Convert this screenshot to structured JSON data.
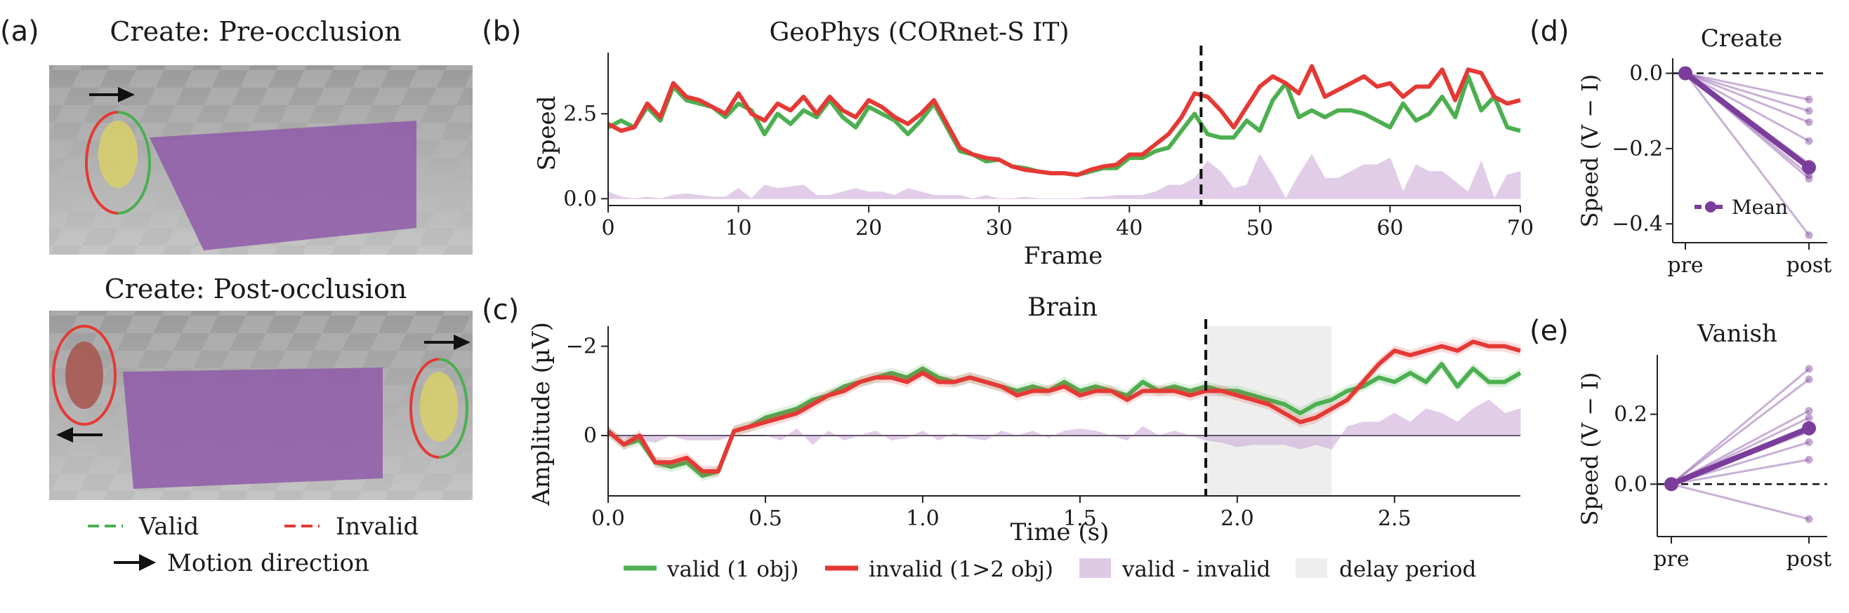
{
  "panel_letters": [
    "(a)",
    "(b)",
    "(c)",
    "(d)",
    "(e)"
  ],
  "panel_a": {
    "top_title": "Create: Pre-occlusion",
    "bottom_title": "Create: Post-occlusion",
    "legend_valid": "Valid",
    "legend_invalid": "Invalid",
    "legend_motion": "Motion direction",
    "colors": {
      "valid": "#4caf50",
      "invalid": "#e53935",
      "wall": "#8e5aa8",
      "bunny": "#d9cf6a",
      "bunny_red": "#a8544c"
    }
  },
  "legend": {
    "valid": "valid (1 obj)",
    "invalid": "invalid (1>2 obj)",
    "diff": "valid - invalid",
    "delay": "delay period"
  },
  "chart_data": [
    {
      "id": "b",
      "type": "line",
      "title": "GeoPhys (CORnet-S IT)",
      "xlabel": "Frame",
      "ylabel": "Speed",
      "xlim": [
        0,
        70
      ],
      "ylim": [
        -0.2,
        4.3
      ],
      "xticks": [
        0,
        10,
        20,
        30,
        40,
        50,
        60,
        70
      ],
      "yticks": [
        "0.0",
        "2.5"
      ],
      "ytick_values": [
        0,
        2.5
      ],
      "vline": 45.5,
      "x": [
        0,
        1,
        2,
        3,
        4,
        5,
        6,
        7,
        8,
        9,
        10,
        11,
        12,
        13,
        14,
        15,
        16,
        17,
        18,
        19,
        20,
        21,
        22,
        23,
        24,
        25,
        26,
        27,
        28,
        29,
        30,
        31,
        32,
        33,
        34,
        35,
        36,
        37,
        38,
        39,
        40,
        41,
        42,
        43,
        44,
        45,
        46,
        47,
        48,
        49,
        50,
        51,
        52,
        53,
        54,
        55,
        56,
        57,
        58,
        59,
        60,
        61,
        62,
        63,
        64,
        65,
        66,
        67,
        68,
        69,
        70
      ],
      "series": [
        {
          "name": "valid (1 obj)",
          "color": "#4caf50",
          "values": [
            2.1,
            2.3,
            2.1,
            2.7,
            2.3,
            3.3,
            2.9,
            2.8,
            2.7,
            2.4,
            2.8,
            2.6,
            1.9,
            2.5,
            2.2,
            2.6,
            2.4,
            2.9,
            2.4,
            2.1,
            2.7,
            2.5,
            2.3,
            1.9,
            2.3,
            2.8,
            2.1,
            1.4,
            1.3,
            1.1,
            1.15,
            0.95,
            0.9,
            0.8,
            0.75,
            0.75,
            0.7,
            0.8,
            0.9,
            0.9,
            1.2,
            1.2,
            1.4,
            1.5,
            2.0,
            2.5,
            1.9,
            1.8,
            1.8,
            2.3,
            2.0,
            2.9,
            3.4,
            2.4,
            2.6,
            2.4,
            2.6,
            2.6,
            2.5,
            2.3,
            2.1,
            2.8,
            2.3,
            2.5,
            3.0,
            2.4,
            3.6,
            2.6,
            3.0,
            2.1,
            2.0
          ]
        },
        {
          "name": "invalid (1>2 obj)",
          "color": "#e53935",
          "values": [
            2.2,
            2.0,
            2.1,
            2.8,
            2.4,
            3.4,
            3.0,
            2.9,
            2.7,
            2.5,
            3.1,
            2.5,
            2.3,
            2.8,
            2.6,
            3.0,
            2.5,
            3.0,
            2.6,
            2.4,
            2.9,
            2.7,
            2.4,
            2.2,
            2.5,
            2.9,
            2.2,
            1.5,
            1.3,
            1.2,
            1.15,
            0.95,
            0.85,
            0.8,
            0.75,
            0.75,
            0.7,
            0.85,
            0.95,
            1.0,
            1.3,
            1.3,
            1.6,
            1.9,
            2.4,
            3.1,
            3.0,
            2.6,
            2.1,
            2.7,
            3.3,
            3.6,
            3.4,
            3.1,
            3.9,
            3.0,
            3.2,
            3.4,
            3.6,
            3.3,
            3.4,
            3.0,
            3.3,
            3.3,
            3.8,
            2.9,
            3.8,
            3.7,
            3.0,
            2.8,
            2.9
          ]
        },
        {
          "name": "valid - invalid",
          "color": "#c9a6d6",
          "type": "area",
          "values": [
            0.2,
            0.05,
            0.0,
            0.05,
            0.0,
            0.1,
            0.15,
            0.1,
            0.05,
            0.05,
            0.3,
            0.0,
            0.4,
            0.3,
            0.35,
            0.4,
            0.1,
            0.1,
            0.2,
            0.3,
            0.2,
            0.2,
            0.1,
            0.3,
            0.2,
            0.1,
            0.1,
            0.1,
            0.0,
            0.1,
            0.0,
            0.0,
            0.05,
            0.0,
            0.0,
            0.0,
            0.0,
            0.05,
            0.05,
            0.1,
            0.1,
            0.1,
            0.2,
            0.4,
            0.4,
            0.6,
            1.1,
            0.8,
            0.3,
            0.4,
            1.3,
            0.7,
            0.0,
            0.7,
            1.3,
            0.6,
            0.6,
            0.8,
            1.0,
            1.0,
            1.2,
            0.2,
            1.0,
            0.8,
            0.8,
            0.5,
            0.2,
            1.1,
            0.0,
            0.7,
            0.8
          ]
        }
      ]
    },
    {
      "id": "c",
      "type": "line",
      "title": "Brain",
      "xlabel": "Time (s)",
      "ylabel": "Amplitude (µV)",
      "xlim": [
        0,
        2.9
      ],
      "ylim": [
        1.35,
        -2.45
      ],
      "y_inverted": true,
      "xticks": [
        0,
        0.5,
        1.0,
        1.5,
        2.0,
        2.5
      ],
      "xtick_labels": [
        "0.0",
        "0.5",
        "1.0",
        "1.5",
        "2.0",
        "2.5"
      ],
      "yticks": [
        "0",
        "−2"
      ],
      "ytick_values": [
        0,
        -2
      ],
      "vline": 1.9,
      "delay_period": [
        1.9,
        2.3
      ],
      "x": [
        0,
        0.05,
        0.1,
        0.15,
        0.2,
        0.25,
        0.3,
        0.35,
        0.4,
        0.45,
        0.5,
        0.55,
        0.6,
        0.65,
        0.7,
        0.75,
        0.8,
        0.85,
        0.9,
        0.95,
        1.0,
        1.05,
        1.1,
        1.15,
        1.2,
        1.25,
        1.3,
        1.35,
        1.4,
        1.45,
        1.5,
        1.55,
        1.6,
        1.65,
        1.7,
        1.75,
        1.8,
        1.85,
        1.9,
        1.95,
        2.0,
        2.05,
        2.1,
        2.15,
        2.2,
        2.25,
        2.3,
        2.35,
        2.4,
        2.45,
        2.5,
        2.55,
        2.6,
        2.65,
        2.7,
        2.75,
        2.8,
        2.85,
        2.9
      ],
      "series": [
        {
          "name": "valid (1 obj)",
          "color": "#4caf50",
          "values": [
            -0.1,
            0.2,
            0.1,
            0.6,
            0.7,
            0.6,
            0.9,
            0.8,
            -0.1,
            -0.2,
            -0.4,
            -0.5,
            -0.6,
            -0.8,
            -0.9,
            -1.1,
            -1.2,
            -1.3,
            -1.4,
            -1.3,
            -1.5,
            -1.3,
            -1.2,
            -1.3,
            -1.2,
            -1.1,
            -1.0,
            -1.1,
            -1.0,
            -1.2,
            -1.0,
            -1.1,
            -1.0,
            -0.9,
            -1.2,
            -1.0,
            -1.1,
            -1.0,
            -1.1,
            -1.0,
            -1.0,
            -0.9,
            -0.8,
            -0.7,
            -0.5,
            -0.7,
            -0.8,
            -1.0,
            -1.1,
            -1.3,
            -1.2,
            -1.4,
            -1.2,
            -1.6,
            -1.1,
            -1.5,
            -1.2,
            -1.2,
            -1.4
          ]
        },
        {
          "name": "invalid (1>2 obj)",
          "color": "#e53935",
          "values": [
            -0.1,
            0.2,
            0.0,
            0.6,
            0.6,
            0.5,
            0.8,
            0.8,
            -0.1,
            -0.2,
            -0.3,
            -0.4,
            -0.5,
            -0.7,
            -0.9,
            -1.0,
            -1.2,
            -1.3,
            -1.3,
            -1.2,
            -1.4,
            -1.2,
            -1.2,
            -1.3,
            -1.2,
            -1.1,
            -0.9,
            -1.0,
            -1.0,
            -1.1,
            -0.9,
            -1.0,
            -1.0,
            -0.8,
            -1.0,
            -1.0,
            -1.0,
            -0.9,
            -1.0,
            -1.0,
            -0.9,
            -0.8,
            -0.7,
            -0.5,
            -0.3,
            -0.4,
            -0.6,
            -0.8,
            -1.2,
            -1.6,
            -1.9,
            -1.8,
            -1.9,
            -2.0,
            -1.9,
            -2.1,
            -2.0,
            -2.0,
            -1.9
          ]
        },
        {
          "name": "valid - invalid",
          "color": "#c9a6d6",
          "type": "area",
          "values": [
            0,
            0.05,
            0.1,
            0.15,
            0.0,
            0.1,
            0.1,
            0.1,
            0.0,
            0.0,
            0.0,
            0.1,
            -0.15,
            0.2,
            -0.1,
            0.1,
            0.0,
            -0.1,
            0.1,
            0.05,
            -0.1,
            0.1,
            -0.05,
            0.05,
            0.1,
            -0.1,
            0.0,
            -0.1,
            0.05,
            -0.1,
            -0.15,
            -0.1,
            0.0,
            0.1,
            -0.2,
            0.0,
            -0.1,
            0.0,
            0.1,
            0.15,
            0.25,
            0.2,
            0.2,
            0.2,
            0.3,
            0.2,
            0.3,
            -0.2,
            -0.3,
            -0.3,
            -0.5,
            -0.3,
            -0.6,
            -0.5,
            -0.3,
            -0.6,
            -0.8,
            -0.5,
            -0.6
          ]
        }
      ]
    },
    {
      "id": "d",
      "type": "line",
      "title": "Create",
      "ylabel": "Speed (V − I)",
      "categories": [
        "pre",
        "post"
      ],
      "ylim": [
        -0.45,
        0.04
      ],
      "yticks": [
        "0.0",
        "−0.2",
        "−0.4"
      ],
      "ytick_values": [
        0,
        -0.2,
        -0.4
      ],
      "color": "#7b3d9b",
      "legend": "Mean",
      "individual_post_values": [
        -0.07,
        -0.1,
        -0.13,
        -0.18,
        -0.24,
        -0.27,
        -0.28,
        -0.43
      ],
      "mean_post_value": -0.25,
      "pre_value": 0.0
    },
    {
      "id": "e",
      "type": "line",
      "title": "Vanish",
      "ylabel": "Speed (V − I)",
      "categories": [
        "pre",
        "post"
      ],
      "ylim": [
        -0.15,
        0.37
      ],
      "yticks": [
        "0.0",
        "0.2"
      ],
      "ytick_values": [
        0,
        0.2
      ],
      "color": "#7b3d9b",
      "individual_post_values": [
        0.33,
        0.3,
        0.21,
        0.19,
        0.15,
        0.12,
        0.07,
        -0.1
      ],
      "mean_post_value": 0.16,
      "pre_value": 0.0
    }
  ]
}
